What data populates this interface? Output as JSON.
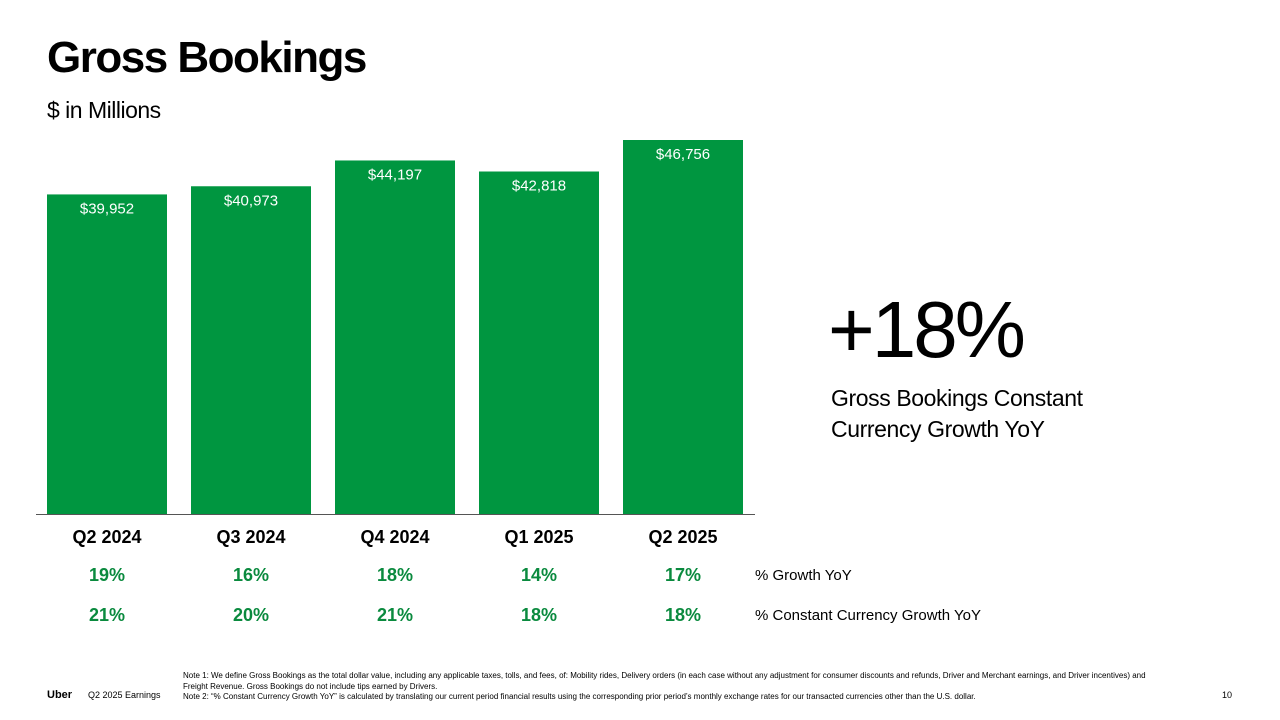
{
  "header": {
    "title": "Gross Bookings",
    "subtitle": "$ in Millions"
  },
  "chart_data": {
    "type": "bar",
    "categories": [
      "Q2 2024",
      "Q3 2024",
      "Q4 2024",
      "Q1 2025",
      "Q2 2025"
    ],
    "values": [
      39952,
      40973,
      44197,
      42818,
      46756
    ],
    "value_labels": [
      "$39,952",
      "$40,973",
      "$44,197",
      "$42,818",
      "$46,756"
    ],
    "ylim": [
      0,
      46756
    ],
    "grid": false,
    "bar_color": "#009640"
  },
  "growth_rows": [
    {
      "label": "% Growth YoY",
      "values": [
        "19%",
        "16%",
        "18%",
        "14%",
        "17%"
      ]
    },
    {
      "label": "% Constant Currency Growth YoY",
      "values": [
        "21%",
        "20%",
        "21%",
        "18%",
        "18%"
      ]
    }
  ],
  "kpi": {
    "value": "+18%",
    "label": "Gross Bookings Constant Currency Growth YoY"
  },
  "footer": {
    "brand": "Uber",
    "deck": "Q2 2025 Earnings",
    "note1": "Note 1: We define Gross Bookings as the total dollar value, including any applicable taxes, tolls, and fees, of: Mobility rides, Delivery orders (in each case without any adjustment for consumer discounts and refunds, Driver and Merchant earnings, and Driver incentives) and Freight Revenue. Gross Bookings do not include tips earned by Drivers.",
    "note2": "Note 2: “% Constant Currency Growth YoY” is calculated by translating our current period financial results using the corresponding prior period’s monthly exchange rates for our transacted currencies other than the U.S. dollar.",
    "page": "10"
  },
  "colors": {
    "accent_green": "#009640",
    "growth_green": "#0a8a3e"
  }
}
